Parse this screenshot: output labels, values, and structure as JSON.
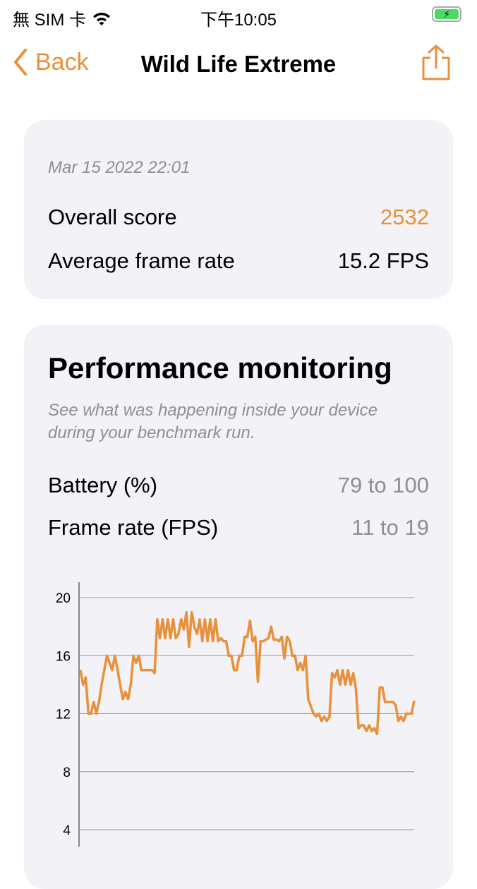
{
  "status_bar": {
    "carrier": "無 SIM 卡",
    "time": "下午10:05",
    "icons": [
      "wifi-icon",
      "battery-charging-icon"
    ]
  },
  "nav": {
    "back_label": "Back",
    "title": "Wild Life Extreme",
    "share_icon": "share-icon"
  },
  "summary": {
    "date": "Mar 15 2022 22:01",
    "overall_label": "Overall score",
    "overall_value": "2532",
    "fps_label": "Average frame rate",
    "fps_value": "15.2 FPS"
  },
  "performance": {
    "title": "Performance monitoring",
    "subtitle": "See what was happening inside your device during your benchmark run.",
    "battery_label": "Battery (%)",
    "battery_value": "79 to 100",
    "framerate_label": "Frame rate (FPS)",
    "framerate_value": "11 to 19"
  },
  "colors": {
    "accent": "#e8913a",
    "card": "#f2f2f7"
  },
  "chart_data": {
    "type": "line",
    "ylim": [
      0,
      20
    ],
    "yticks": [
      "20",
      "16",
      "12",
      "8",
      "4"
    ],
    "grid": true,
    "color": "#e8913a",
    "values": [
      15,
      14,
      14.5,
      12,
      12,
      12.8,
      12,
      12.8,
      14,
      15,
      16,
      15.5,
      15,
      16,
      15,
      14,
      13,
      13.5,
      13,
      14,
      16,
      15.5,
      16,
      15,
      15,
      15,
      15,
      15,
      14.8,
      18.5,
      17.2,
      18.5,
      17.2,
      18.5,
      17.2,
      18.5,
      17.2,
      17.5,
      18.5,
      17.8,
      19,
      16.6,
      19,
      18,
      17.5,
      18.5,
      17,
      18.5,
      17,
      18.5,
      17,
      18.5,
      17,
      17.2,
      17,
      17,
      16,
      16,
      15,
      15,
      16,
      16,
      17.3,
      17.3,
      18.4,
      17,
      17.3,
      14.2,
      17,
      17,
      17.1,
      17.2,
      18,
      17.1,
      17.1,
      17,
      17.3,
      15.8,
      17.3,
      17,
      16,
      16,
      15,
      15.5,
      15,
      16,
      13,
      12.5,
      12,
      11.8,
      12,
      11.5,
      11.8,
      11.5,
      11.8,
      14.8,
      14.5,
      15,
      14,
      15,
      14,
      15,
      14,
      14.8,
      13.7,
      11,
      11.2,
      11.2,
      10.8,
      11.2,
      10.8,
      11,
      10.6,
      13.8,
      13.8,
      12.8,
      12.8,
      12.8,
      12.8,
      12.6,
      11.5,
      11.8,
      11.5,
      12,
      12,
      12,
      12.9
    ]
  }
}
